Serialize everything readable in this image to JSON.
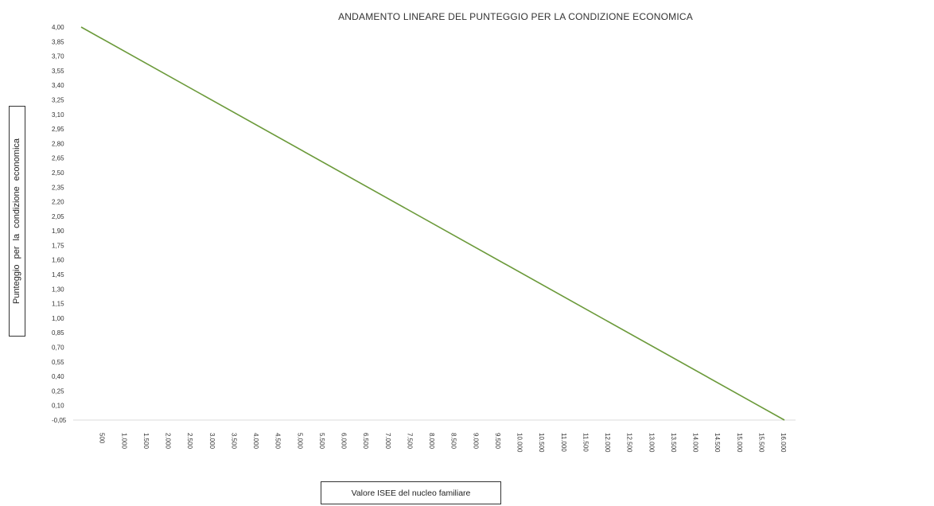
{
  "chart_data": {
    "type": "line",
    "title": "ANDAMENTO LINEARE DEL PUNTEGGIO PER LA CONDIZIONE ECONOMICA",
    "xlabel": "Valore ISEE del nucleo familiare",
    "ylabel": "Punteggio per la condizione economica",
    "x_tick_labels": [
      "500",
      "1.000",
      "1.500",
      "2.000",
      "2.500",
      "3.000",
      "3.500",
      "4.000",
      "4.500",
      "5.000",
      "5.500",
      "6.000",
      "6.500",
      "7.000",
      "7.500",
      "8.000",
      "8.500",
      "9.000",
      "9.500",
      "10.000",
      "10.500",
      "11.000",
      "11.500",
      "12.000",
      "12.500",
      "13.000",
      "13.500",
      "14.000",
      "14.500",
      "15.000",
      "15.500",
      "16.000"
    ],
    "y_tick_labels": [
      "4,00",
      "3,85",
      "3,70",
      "3,55",
      "3,40",
      "3,25",
      "3,10",
      "2,95",
      "2,80",
      "2,65",
      "2,50",
      "2,35",
      "2,20",
      "2,05",
      "1,90",
      "1,75",
      "1,60",
      "1,45",
      "1,30",
      "1,15",
      "1,00",
      "0,85",
      "0,70",
      "0,55",
      "0,40",
      "0,25",
      "0,10",
      "-0,05"
    ],
    "xlim": [
      0,
      16000
    ],
    "ylim": [
      -0.05,
      4.0
    ],
    "series": [
      {
        "x": [
          0,
          16000
        ],
        "values": [
          4.0,
          -0.05
        ]
      }
    ],
    "line_color": "#6b9a3a",
    "grid": false
  }
}
